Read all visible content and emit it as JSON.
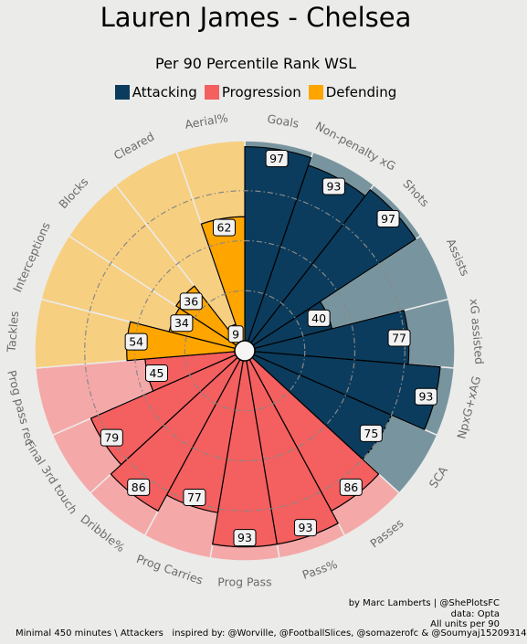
{
  "header": {
    "title": "Lauren James - Chelsea",
    "subtitle": "Per 90 Percentile Rank WSL"
  },
  "legend": [
    {
      "label": "Attacking",
      "color": "#0b3c5d"
    },
    {
      "label": "Progression",
      "color": "#f45f5f"
    },
    {
      "label": "Defending",
      "color": "#ffa500"
    }
  ],
  "footer": {
    "credit": "by Marc Lamberts | @ShePlotsFC",
    "source": "data: Opta",
    "units": "All units per 90",
    "minimal": "Minimal 450 minutes \\ Attackers",
    "inspired": "inspired by: @Worville, @FootballSlices, @somazerofc & @Soumyaj15209314"
  },
  "chart_data": {
    "type": "pie",
    "subtype": "radial-bar",
    "range": [
      0,
      100
    ],
    "categories": [
      "Goals",
      "Non-penalty xG",
      "Shots",
      "Assists",
      "xG assisted",
      "NpxG+xAG",
      "SCA",
      "Passes",
      "Pass%",
      "Prog Pass",
      "Prog Carries",
      "Dribble%",
      "Final 3rd touch",
      "Prog pass rec",
      "Tackles",
      "Interceptions",
      "Blocks",
      "Cleared",
      "Aerial%"
    ],
    "values": [
      97,
      93,
      97,
      40,
      77,
      93,
      75,
      86,
      93,
      93,
      77,
      86,
      79,
      45,
      54,
      34,
      36,
      9,
      62
    ],
    "groups": [
      "Attacking",
      "Attacking",
      "Attacking",
      "Attacking",
      "Attacking",
      "Attacking",
      "Attacking",
      "Progression",
      "Progression",
      "Progression",
      "Progression",
      "Progression",
      "Progression",
      "Progression",
      "Defending",
      "Defending",
      "Defending",
      "Defending",
      "Defending"
    ],
    "colors": {
      "Attacking": "#0b3c5d",
      "Progression": "#f45f5f",
      "Defending": "#ffa500",
      "Attacking_bg": "#78959f",
      "Progression_bg": "#f5a8a8",
      "Defending_bg": "#f7cf80"
    }
  }
}
